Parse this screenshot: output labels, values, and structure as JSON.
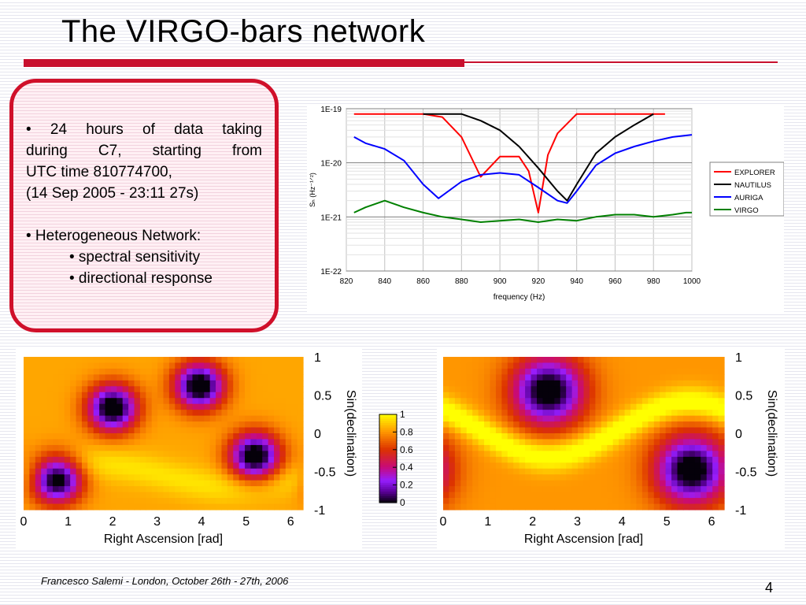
{
  "slide": {
    "title": "The VIRGO-bars network",
    "footer": "Francesco Salemi - London, October 26th - 27th, 2006",
    "page_number": "4"
  },
  "bullets": {
    "b1_line1": "• 24 hours of data taking",
    "b1_line2": "during C7, starting from",
    "b1_line3": "UTC time 810774700,",
    "b1_line4": "(14 Sep 2005 - 23:11 27s)",
    "b2": "• Heterogeneous Network:",
    "b2_sub1": "• spectral sensitivity",
    "b2_sub2": "• directional response"
  },
  "colors": {
    "accent_red": "#c8102e",
    "explorer": "#ff0000",
    "nautilus": "#000000",
    "auriga": "#0000ff",
    "virgo": "#008000"
  },
  "chart_data": [
    {
      "type": "line",
      "title": "",
      "xlabel": "frequency (Hz)",
      "ylabel": "Sₕ (Hz⁻¹ᐟ²)",
      "xlim": [
        820,
        1000
      ],
      "ylim": [
        1e-22,
        1e-19
      ],
      "yscale": "log",
      "grid": true,
      "legend": "right",
      "x_ticks": [
        "820",
        "840",
        "860",
        "880",
        "900",
        "920",
        "940",
        "960",
        "980",
        "1000"
      ],
      "y_ticks": [
        "1E-19",
        "1E-20",
        "1E-21",
        "1E-22"
      ],
      "series": [
        {
          "name": "EXPLORER",
          "x": [
            824,
            830,
            840,
            850,
            860,
            870,
            880,
            890,
            900,
            910,
            915,
            920,
            925,
            930,
            940,
            950,
            960,
            970,
            980,
            986
          ],
          "y": [
            8e-20,
            8e-20,
            8e-20,
            8e-20,
            8e-20,
            7e-20,
            3e-20,
            5.5e-21,
            1.3e-20,
            1.3e-20,
            7e-21,
            1.2e-21,
            1.4e-20,
            3.5e-20,
            8e-20,
            8e-20,
            8e-20,
            8e-20,
            8e-20,
            8e-20
          ]
        },
        {
          "name": "NAUTILUS",
          "x": [
            860,
            870,
            880,
            890,
            900,
            910,
            920,
            930,
            935,
            940,
            950,
            960,
            970,
            980
          ],
          "y": [
            8e-20,
            8e-20,
            8e-20,
            6e-20,
            4e-20,
            2e-20,
            8e-21,
            3e-21,
            2e-21,
            4e-21,
            1.5e-20,
            3e-20,
            5e-20,
            8e-20
          ]
        },
        {
          "name": "AURIGA",
          "x": [
            824,
            830,
            840,
            850,
            860,
            868,
            880,
            890,
            900,
            910,
            920,
            930,
            935,
            940,
            950,
            960,
            970,
            980,
            990,
            1000
          ],
          "y": [
            3e-20,
            2.3e-20,
            1.8e-20,
            1.1e-20,
            4e-21,
            2.2e-21,
            4.5e-21,
            6e-21,
            6.5e-21,
            6e-21,
            3.5e-21,
            2e-21,
            1.8e-21,
            3e-21,
            9e-21,
            1.5e-20,
            2e-20,
            2.5e-20,
            3e-20,
            3.3e-20
          ]
        },
        {
          "name": "VIRGO",
          "x": [
            824,
            830,
            840,
            850,
            860,
            870,
            880,
            890,
            900,
            910,
            920,
            930,
            940,
            950,
            960,
            970,
            980,
            990,
            997,
            1000
          ],
          "y": [
            1.2e-21,
            1.5e-21,
            2e-21,
            1.5e-21,
            1.2e-21,
            1e-21,
            9e-22,
            8e-22,
            8.5e-22,
            9e-22,
            8e-22,
            9e-22,
            8.5e-22,
            1e-21,
            1.1e-21,
            1.1e-21,
            1e-21,
            1.1e-21,
            1.2e-21,
            1.2e-21
          ]
        }
      ]
    },
    {
      "type": "heatmap",
      "title": "",
      "xlabel": "Right Ascension [rad]",
      "ylabel": "Sin(declination)",
      "xlim": [
        0,
        6.28
      ],
      "ylim": [
        -1,
        1
      ],
      "x_ticks": [
        "0",
        "1",
        "2",
        "3",
        "4",
        "5",
        "6"
      ],
      "y_ticks": [
        "1",
        "0.5",
        "0",
        "-0.5",
        "-1"
      ],
      "minima": [
        [
          0.75,
          -0.6
        ],
        [
          2.0,
          0.33
        ],
        [
          3.95,
          0.62
        ],
        [
          5.2,
          -0.3
        ]
      ]
    },
    {
      "type": "heatmap",
      "title": "",
      "xlabel": "Right Ascension [rad]",
      "ylabel": "Sin(declination)",
      "xlim": [
        0,
        6.28
      ],
      "ylim": [
        -1,
        1
      ],
      "x_ticks": [
        "0",
        "1",
        "2",
        "3",
        "4",
        "5",
        "6"
      ],
      "y_ticks": [
        "1",
        "0.5",
        "0",
        "-0.5",
        "-1"
      ],
      "minima": [
        [
          2.35,
          0.55
        ],
        [
          5.55,
          -0.48
        ]
      ]
    }
  ],
  "colorbar": {
    "ticks": [
      "1",
      "0.8",
      "0.6",
      "0.4",
      "0.2",
      "0"
    ]
  }
}
